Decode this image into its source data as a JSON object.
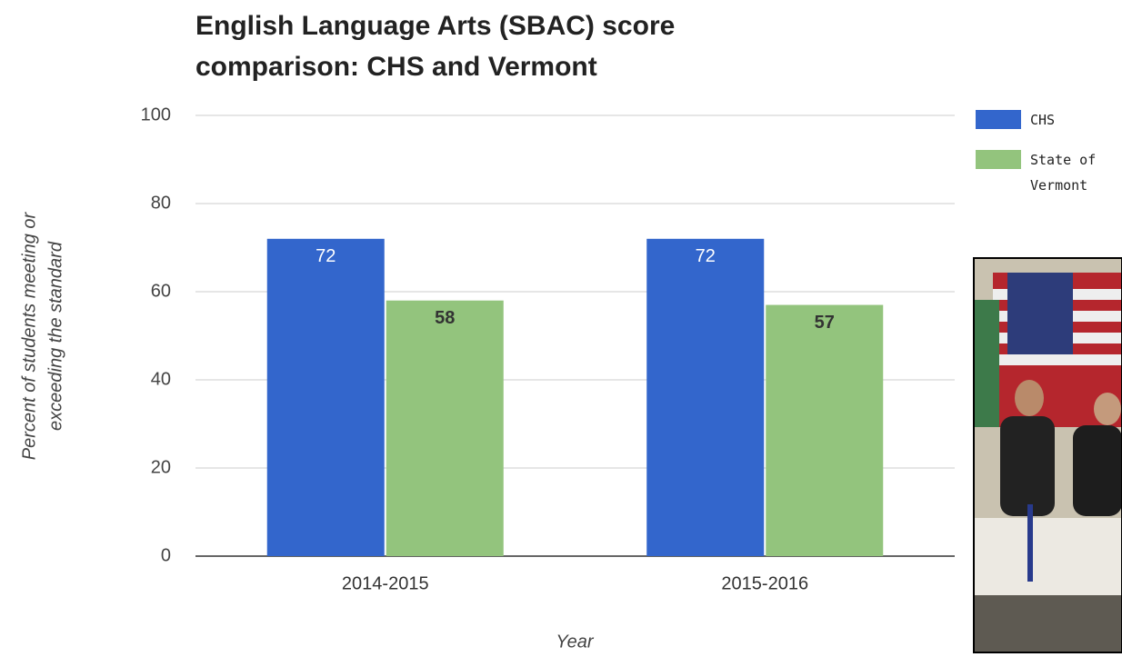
{
  "chart_data": {
    "type": "bar",
    "title_lines": [
      "English Language Arts (SBAC) score",
      "comparison: CHS and Vermont"
    ],
    "y_label_lines": [
      "Percent of students meeting or",
      "exceeding the standard"
    ],
    "x_label": "Year",
    "categories": [
      "2014-2015",
      "2015-2016"
    ],
    "series": [
      {
        "name": "CHS",
        "color": "#3366cc",
        "values": [
          72,
          72
        ]
      },
      {
        "name": "State of Vermont",
        "color": "#93c47d",
        "values": [
          58,
          57
        ]
      }
    ],
    "ylim": [
      0,
      100
    ],
    "yticks": [
      0,
      20,
      40,
      60,
      80,
      100
    ],
    "grid": true,
    "legend": "right"
  }
}
